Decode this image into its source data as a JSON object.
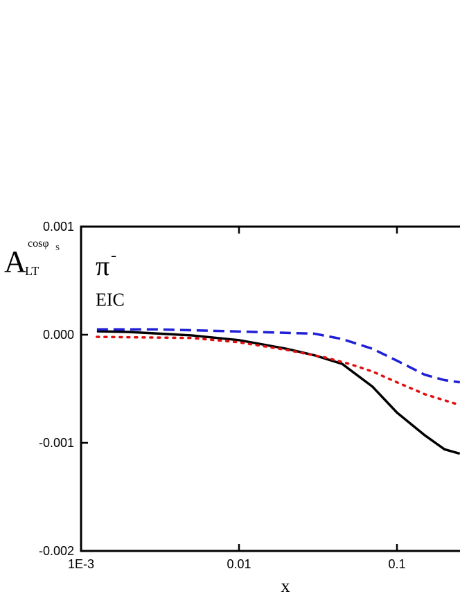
{
  "chart_data": {
    "type": "line",
    "xlabel": "x",
    "ylabel": {
      "main": "A",
      "sub": "LT",
      "sup": "cosφ",
      "supsub": "S"
    },
    "annotations": [
      {
        "text": "π",
        "sup": "-"
      },
      {
        "text": "EIC"
      }
    ],
    "xscale": "log",
    "xlim": [
      0.001,
      1
    ],
    "xticks": [
      {
        "value": 0.001,
        "label": "1E-3"
      },
      0.01,
      0.1
    ],
    "ylim": [
      -0.002,
      0.001
    ],
    "yticks": [
      {
        "value": -0.002,
        "label": "-0.002"
      },
      {
        "value": -0.001,
        "label": "-0.001"
      },
      {
        "value": 0,
        "label": "0.000"
      },
      0.001
    ],
    "grid": false,
    "series": [
      {
        "color": "#000000",
        "style": "solid",
        "x": [
          0.00126,
          0.002,
          0.005,
          0.01,
          0.02,
          0.03,
          0.045,
          0.07,
          0.1,
          0.15,
          0.2,
          0.25
        ],
        "values": [
          3.2e-05,
          2.6e-05,
          -6e-06,
          -5e-05,
          -0.00013,
          -0.00019,
          -0.00027,
          -0.00048,
          -0.00072,
          -0.00093,
          -0.00106,
          -0.0011
        ]
      },
      {
        "color": "#1f1fd6",
        "style": "dashed",
        "x": [
          0.00126,
          0.003,
          0.01,
          0.03,
          0.045,
          0.07,
          0.1,
          0.15,
          0.2,
          0.25
        ],
        "values": [
          5e-05,
          5e-05,
          3e-05,
          1e-05,
          -4e-05,
          -0.00013,
          -0.00024,
          -0.00037,
          -0.00042,
          -0.00044
        ]
      },
      {
        "color": "#e01010",
        "style": "dotted",
        "x": [
          0.00126,
          0.005,
          0.01,
          0.02,
          0.035,
          0.05,
          0.07,
          0.1,
          0.15,
          0.25
        ],
        "values": [
          -2e-05,
          -3e-05,
          -7e-05,
          -0.00014,
          -0.00021,
          -0.00027,
          -0.00034,
          -0.00044,
          -0.00055,
          -0.00065
        ]
      }
    ]
  }
}
